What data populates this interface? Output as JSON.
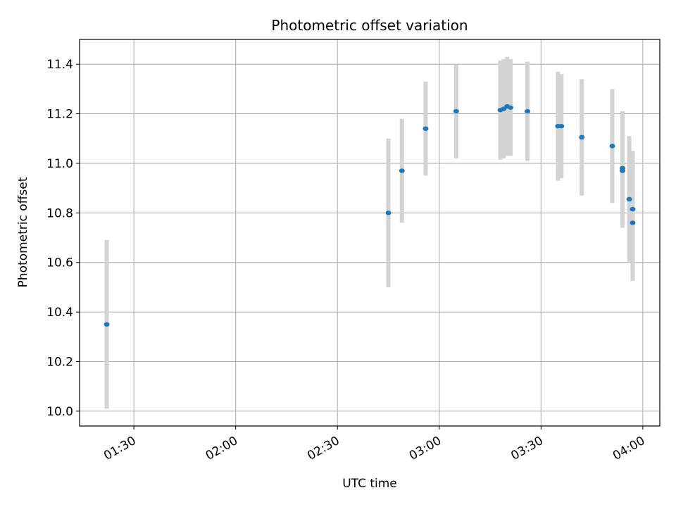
{
  "chart_data": {
    "type": "scatter",
    "title": "Photometric offset variation",
    "xlabel": "UTC time",
    "ylabel": "Photometric offset",
    "x_unit": "UTC time (HH:MM)",
    "xlim": [
      "01:14",
      "04:05"
    ],
    "ylim": [
      9.94,
      11.5
    ],
    "x_ticks": [
      "01:30",
      "02:00",
      "02:30",
      "03:00",
      "03:30",
      "04:00"
    ],
    "y_ticks": [
      10.0,
      10.2,
      10.4,
      10.6,
      10.8,
      11.0,
      11.2,
      11.4
    ],
    "grid": true,
    "point_color": "#1f77b4",
    "errorbar_color": "#d3d3d3",
    "points": [
      {
        "x": "01:22",
        "y": 10.35,
        "yerr": 0.34
      },
      {
        "x": "02:45",
        "y": 10.8,
        "yerr": 0.3
      },
      {
        "x": "02:49",
        "y": 10.97,
        "yerr": 0.21
      },
      {
        "x": "02:56",
        "y": 11.14,
        "yerr": 0.19
      },
      {
        "x": "03:05",
        "y": 11.21,
        "yerr": 0.19
      },
      {
        "x": "03:18",
        "y": 11.215,
        "yerr": 0.2
      },
      {
        "x": "03:19",
        "y": 11.22,
        "yerr": 0.2
      },
      {
        "x": "03:20",
        "y": 11.23,
        "yerr": 0.2
      },
      {
        "x": "03:21",
        "y": 11.225,
        "yerr": 0.195
      },
      {
        "x": "03:26",
        "y": 11.21,
        "yerr": 0.2
      },
      {
        "x": "03:35",
        "y": 11.15,
        "yerr": 0.22
      },
      {
        "x": "03:36",
        "y": 11.15,
        "yerr": 0.21
      },
      {
        "x": "03:42",
        "y": 11.105,
        "yerr": 0.235
      },
      {
        "x": "03:51",
        "y": 11.07,
        "yerr": 0.23
      },
      {
        "x": "03:54",
        "y": 10.98,
        "yerr": 0.23
      },
      {
        "x": "03:54",
        "y": 10.97,
        "yerr": 0.23
      },
      {
        "x": "03:56",
        "y": 10.855,
        "yerr": 0.255
      },
      {
        "x": "03:57",
        "y": 10.815,
        "yerr": 0.235
      },
      {
        "x": "03:57",
        "y": 10.76,
        "yerr": 0.235
      }
    ]
  }
}
